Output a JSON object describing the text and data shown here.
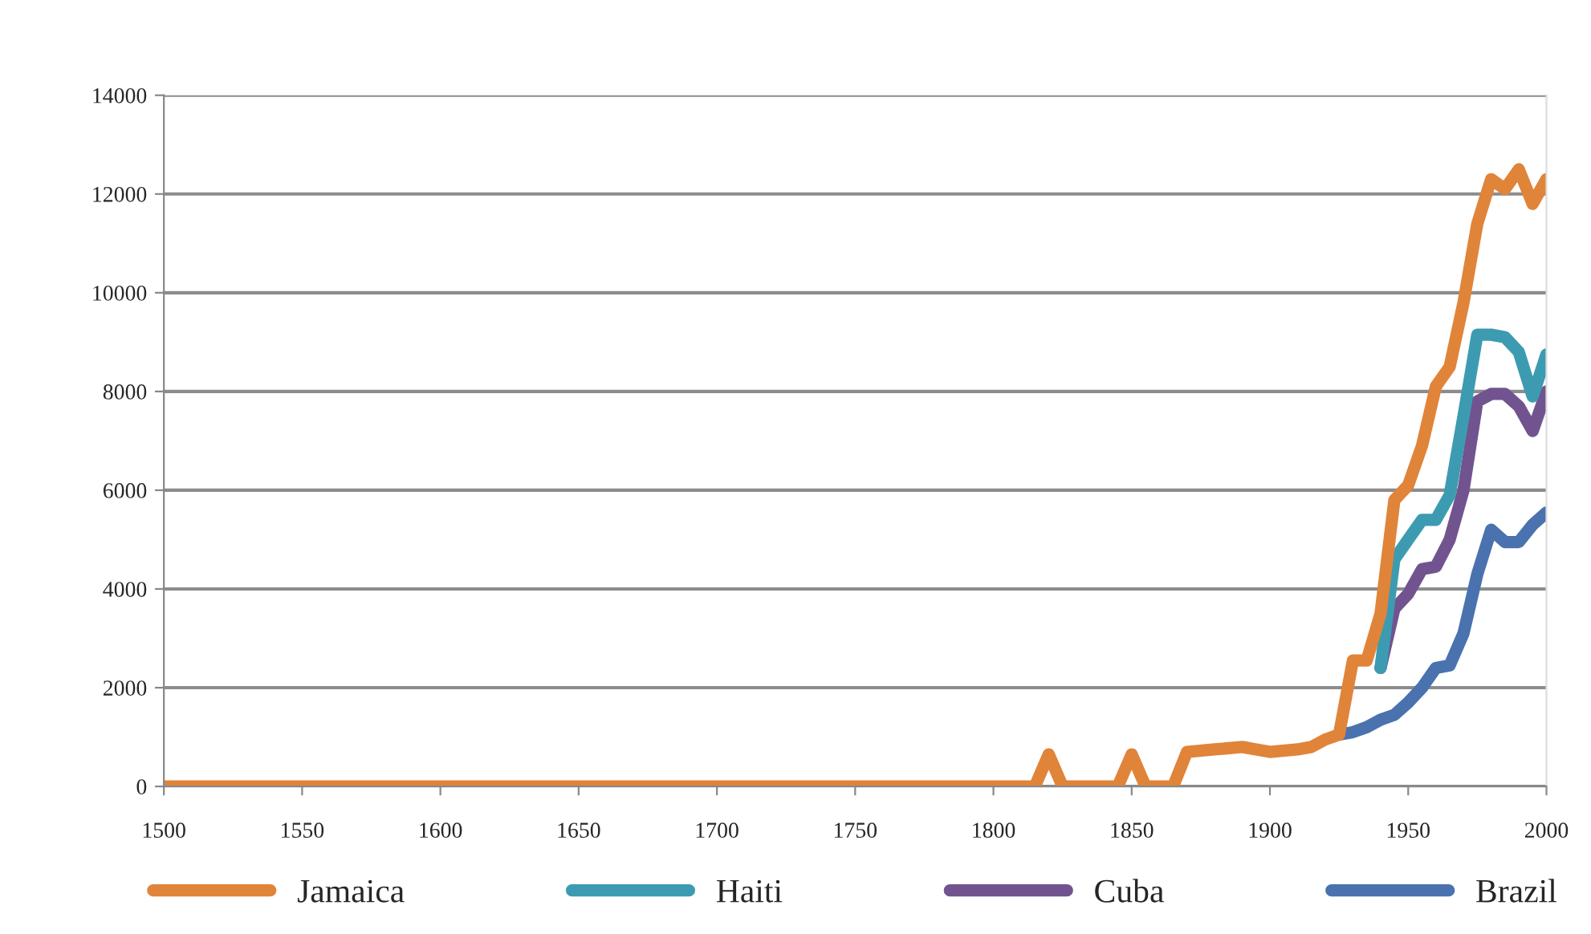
{
  "chart_data": {
    "type": "line",
    "x": [
      1500,
      1815,
      1820,
      1825,
      1845,
      1850,
      1855,
      1865,
      1870,
      1880,
      1890,
      1895,
      1900,
      1910,
      1915,
      1920,
      1925,
      1930,
      1935,
      1940,
      1945,
      1950,
      1955,
      1960,
      1965,
      1970,
      1975,
      1980,
      1985,
      1990,
      1995,
      2000
    ],
    "series": [
      {
        "name": "Brazil",
        "color": "#4a72ae",
        "values": [
          null,
          null,
          null,
          null,
          null,
          null,
          null,
          null,
          null,
          null,
          null,
          null,
          null,
          null,
          null,
          null,
          1050,
          1100,
          1200,
          1350,
          1450,
          1700,
          2000,
          2400,
          2450,
          3100,
          4300,
          5200,
          4950,
          4950,
          5300,
          5550
        ]
      },
      {
        "name": "Cuba",
        "color": "#71548f",
        "values": [
          null,
          null,
          null,
          null,
          null,
          null,
          null,
          null,
          null,
          null,
          null,
          null,
          null,
          null,
          null,
          null,
          null,
          null,
          null,
          2400,
          3600,
          3900,
          4400,
          4450,
          5000,
          6000,
          7800,
          7950,
          7950,
          7700,
          7200,
          8000
        ]
      },
      {
        "name": "Haiti",
        "color": "#3d9bb1",
        "values": [
          null,
          null,
          null,
          null,
          null,
          null,
          null,
          null,
          null,
          null,
          null,
          null,
          null,
          null,
          null,
          null,
          null,
          null,
          null,
          2400,
          4600,
          5000,
          5400,
          5400,
          5900,
          7500,
          9150,
          9150,
          9100,
          8800,
          7900,
          8750
        ]
      },
      {
        "name": "Jamaica",
        "color": "#e0843a",
        "values": [
          0,
          0,
          650,
          0,
          0,
          650,
          0,
          0,
          700,
          750,
          800,
          750,
          700,
          750,
          800,
          950,
          1050,
          2550,
          2550,
          3500,
          5800,
          6100,
          6900,
          8100,
          8500,
          9800,
          11400,
          12300,
          12100,
          12500,
          11800,
          12300
        ]
      }
    ],
    "xlim": [
      1500,
      2000
    ],
    "xticks": [
      1500,
      1550,
      1600,
      1650,
      1700,
      1750,
      1800,
      1850,
      1900,
      1950,
      2000
    ],
    "ylim": [
      0,
      14000
    ],
    "yticks": [
      0,
      2000,
      4000,
      6000,
      8000,
      10000,
      12000,
      14000
    ],
    "grid": "y",
    "legend": "bottom",
    "marker": "none",
    "line_style": "solid"
  }
}
